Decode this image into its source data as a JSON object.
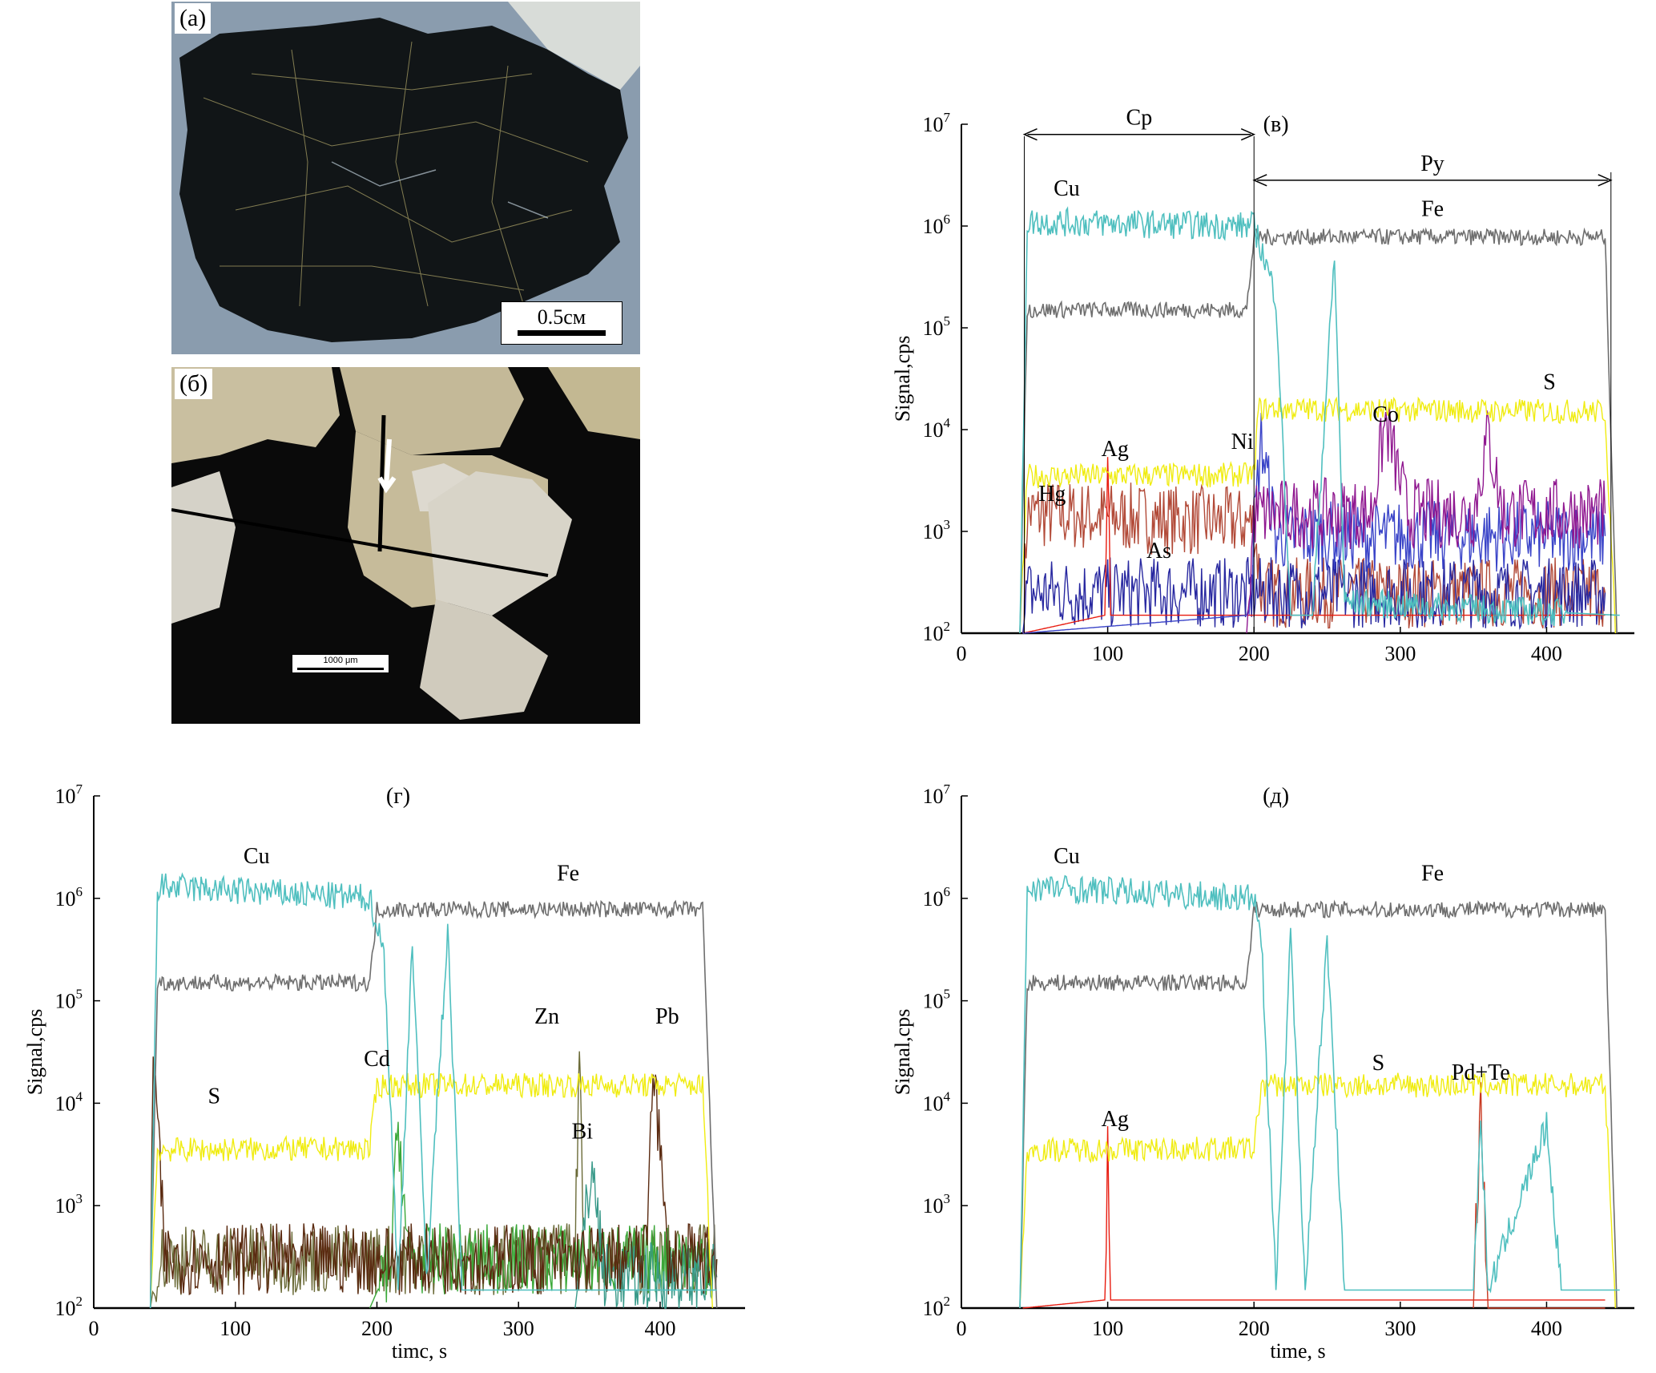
{
  "photos": {
    "a": {
      "label": "(а)",
      "scale": "0.5см"
    },
    "b": {
      "label": "(б)",
      "scale": "1000 μm"
    }
  },
  "colors": {
    "Cu": "#4fbfbf",
    "Fe": "#6e6e6e",
    "S": "#f0ec10",
    "Ag": "#e81c10",
    "Hg": "#b24a38",
    "As": "#2828a0",
    "Ni": "#3a44c8",
    "Co": "#901890",
    "Zn": "#6b6b38",
    "Cd": "#3aa838",
    "Bi": "#3a9a8a",
    "Pb": "#5a2a10",
    "Pd": "#c83820",
    "Te": "#6a60c0",
    "orange": "#f06a20"
  },
  "chart_data": [
    {
      "id": "v",
      "type": "line",
      "title": "(в)",
      "xlabel": "",
      "ylabel": "Signal,cps",
      "xlim": [
        0,
        460
      ],
      "ylim": [
        100,
        10000000
      ],
      "yscale": "log",
      "xticks": [
        "0",
        "100",
        "200",
        "300",
        "400"
      ],
      "ytick_base": "10",
      "ytick_exps": [
        "2",
        "3",
        "4",
        "5",
        "6",
        "7"
      ],
      "ranges": [
        {
          "label": "Cp",
          "x": [
            43,
            200
          ]
        },
        {
          "label": "Py",
          "x": [
            200,
            444
          ]
        }
      ],
      "series": [
        {
          "name": "Fe",
          "segments": [
            [
              40,
              0,
              100
            ],
            [
              45,
              1,
              150000
            ],
            [
              195,
              1,
              150000
            ],
            [
              200,
              1,
              780000
            ],
            [
              440,
              1,
              780000
            ],
            [
              448,
              0,
              100
            ]
          ]
        },
        {
          "name": "Cu",
          "segments": [
            [
              40,
              0,
              100
            ],
            [
              45,
              1,
              1100000
            ],
            [
              200,
              1,
              1000000
            ],
            [
              205,
              1,
              600000
            ],
            [
              215,
              1,
              200000
            ],
            [
              225,
              1,
              150
            ],
            [
              240,
              1,
              150
            ],
            [
              255,
              1,
              500000
            ],
            [
              262,
              1,
              200
            ],
            [
              450,
              1,
              150
            ]
          ]
        },
        {
          "name": "S",
          "segments": [
            [
              40,
              0,
              100
            ],
            [
              45,
              1,
              3500
            ],
            [
              200,
              1,
              3600
            ],
            [
              203,
              1,
              16000
            ],
            [
              440,
              1,
              15000
            ],
            [
              447,
              0,
              100
            ]
          ]
        },
        {
          "name": "Ag",
          "segments": [
            [
              42,
              0,
              100
            ],
            [
              98,
              1,
              150
            ],
            [
              100,
              1,
              4500
            ],
            [
              102,
              1,
              150
            ],
            [
              440,
              1,
              150
            ]
          ]
        },
        {
          "name": "Hg",
          "segments": [
            [
              42,
              0,
              100
            ],
            [
              45,
              1,
              1500
            ],
            [
              200,
              1,
              1200
            ],
            [
              205,
              1,
              250
            ],
            [
              440,
              1,
              250
            ]
          ]
        },
        {
          "name": "As",
          "segments": [
            [
              42,
              0,
              100
            ],
            [
              45,
              1,
              250
            ],
            [
              440,
              1,
              250
            ]
          ]
        },
        {
          "name": "Ni",
          "segments": [
            [
              42,
              0,
              100
            ],
            [
              195,
              1,
              150
            ],
            [
              205,
              1,
              8000
            ],
            [
              215,
              1,
              900
            ],
            [
              440,
              1,
              900
            ]
          ]
        },
        {
          "name": "Co",
          "segments": [
            [
              195,
              0,
              100
            ],
            [
              200,
              1,
              1500
            ],
            [
              280,
              1,
              1500
            ],
            [
              290,
              1,
              12000
            ],
            [
              305,
              1,
              1500
            ],
            [
              350,
              1,
              1500
            ],
            [
              360,
              1,
              9000
            ],
            [
              370,
              1,
              1500
            ],
            [
              440,
              1,
              1500
            ]
          ]
        }
      ],
      "annotations": [
        {
          "label": "Cu",
          "x": 72,
          "y": 2000000
        },
        {
          "label": "Fe",
          "x": 322,
          "y": 1250000
        },
        {
          "label": "Ag",
          "x": 105,
          "y": 5500
        },
        {
          "label": "Hg",
          "x": 62,
          "y": 2000
        },
        {
          "label": "As",
          "x": 135,
          "y": 550
        },
        {
          "label": "Ni",
          "x": 192,
          "y": 6500
        },
        {
          "label": "Co",
          "x": 290,
          "y": 12000
        },
        {
          "label": "S",
          "x": 402,
          "y": 25000
        }
      ]
    },
    {
      "id": "g",
      "type": "line",
      "title": "(г)",
      "xlabel": "timc, s",
      "ylabel": "Signal,cps",
      "xlim": [
        0,
        460
      ],
      "ylim": [
        100,
        10000000
      ],
      "yscale": "log",
      "xticks": [
        "0",
        "100",
        "200",
        "300",
        "400"
      ],
      "ytick_base": "10",
      "ytick_exps": [
        "2",
        "3",
        "4",
        "5",
        "6",
        "7"
      ],
      "series": [
        {
          "name": "Fe",
          "segments": [
            [
              40,
              0,
              100
            ],
            [
              45,
              1,
              150000
            ],
            [
              195,
              1,
              150000
            ],
            [
              200,
              1,
              780000
            ],
            [
              430,
              1,
              780000
            ],
            [
              440,
              0,
              100
            ]
          ]
        },
        {
          "name": "Cu",
          "segments": [
            [
              40,
              0,
              100
            ],
            [
              45,
              1,
              1300000
            ],
            [
              195,
              1,
              1000000
            ],
            [
              205,
              1,
              300000
            ],
            [
              215,
              1,
              150
            ],
            [
              225,
              1,
              400000
            ],
            [
              235,
              1,
              200
            ],
            [
              250,
              1,
              500000
            ],
            [
              260,
              1,
              150
            ],
            [
              440,
              1,
              150
            ]
          ]
        },
        {
          "name": "S",
          "segments": [
            [
              40,
              0,
              100
            ],
            [
              45,
              1,
              3500
            ],
            [
              195,
              1,
              3600
            ],
            [
              200,
              1,
              15000
            ],
            [
              430,
              1,
              15000
            ],
            [
              437,
              0,
              100
            ]
          ]
        },
        {
          "name": "Zn",
          "segments": [
            [
              40,
              0,
              100
            ],
            [
              45,
              1,
              300
            ],
            [
              340,
              1,
              300
            ],
            [
              343,
              1,
              45000
            ],
            [
              346,
              1,
              300
            ],
            [
              440,
              1,
              300
            ]
          ]
        },
        {
          "name": "Cd",
          "segments": [
            [
              195,
              0,
              100
            ],
            [
              210,
              1,
              300
            ],
            [
              215,
              1,
              7000
            ],
            [
              222,
              1,
              300
            ],
            [
              440,
              1,
              300
            ]
          ]
        },
        {
          "name": "Bi",
          "segments": [
            [
              340,
              0,
              100
            ],
            [
              352,
              1,
              2500
            ],
            [
              360,
              1,
              200
            ],
            [
              440,
              1,
              200
            ]
          ]
        },
        {
          "name": "Pb",
          "segments": [
            [
              40,
              0,
              100
            ],
            [
              42,
              1,
              40000
            ],
            [
              50,
              1,
              300
            ],
            [
              390,
              1,
              300
            ],
            [
              395,
              1,
              35000
            ],
            [
              405,
              1,
              300
            ],
            [
              440,
              1,
              300
            ]
          ]
        }
      ],
      "annotations": [
        {
          "label": "Cu",
          "x": 115,
          "y": 2200000
        },
        {
          "label": "Fe",
          "x": 335,
          "y": 1500000
        },
        {
          "label": "S",
          "x": 85,
          "y": 10000
        },
        {
          "label": "Cd",
          "x": 200,
          "y": 23000
        },
        {
          "label": "Zn",
          "x": 320,
          "y": 60000
        },
        {
          "label": "Bi",
          "x": 345,
          "y": 4500
        },
        {
          "label": "Pb",
          "x": 405,
          "y": 60000
        }
      ]
    },
    {
      "id": "d",
      "type": "line",
      "title": "(д)",
      "xlabel": "time, s",
      "ylabel": "Signal,cps",
      "xlim": [
        0,
        460
      ],
      "ylim": [
        100,
        10000000
      ],
      "yscale": "log",
      "xticks": [
        "0",
        "100",
        "200",
        "300",
        "400"
      ],
      "ytick_base": "10",
      "ytick_exps": [
        "2",
        "3",
        "4",
        "5",
        "6",
        "7"
      ],
      "series": [
        {
          "name": "Fe",
          "segments": [
            [
              40,
              0,
              100
            ],
            [
              45,
              1,
              150000
            ],
            [
              195,
              1,
              150000
            ],
            [
              200,
              1,
              780000
            ],
            [
              440,
              1,
              780000
            ],
            [
              448,
              0,
              100
            ]
          ]
        },
        {
          "name": "Cu",
          "segments": [
            [
              40,
              0,
              100
            ],
            [
              45,
              1,
              1300000
            ],
            [
              200,
              1,
              1000000
            ],
            [
              205,
              1,
              400000
            ],
            [
              215,
              1,
              150
            ],
            [
              225,
              1,
              500000
            ],
            [
              235,
              1,
              150
            ],
            [
              250,
              1,
              400000
            ],
            [
              262,
              1,
              150
            ],
            [
              350,
              1,
              150
            ],
            [
              355,
              1,
              7000
            ],
            [
              360,
              1,
              150
            ],
            [
              400,
              1,
              6000
            ],
            [
              410,
              1,
              150
            ],
            [
              450,
              1,
              150
            ]
          ]
        },
        {
          "name": "S",
          "segments": [
            [
              40,
              0,
              100
            ],
            [
              45,
              1,
              3500
            ],
            [
              200,
              1,
              3600
            ],
            [
              205,
              1,
              15000
            ],
            [
              440,
              1,
              15000
            ],
            [
              447,
              0,
              100
            ]
          ]
        },
        {
          "name": "Ag",
          "segments": [
            [
              42,
              0,
              100
            ],
            [
              98,
              1,
              120
            ],
            [
              100,
              1,
              4000
            ],
            [
              102,
              1,
              120
            ],
            [
              440,
              1,
              120
            ]
          ]
        },
        {
          "name": "Pd+Te",
          "segments": [
            [
              350,
              0,
              100
            ],
            [
              355,
              1,
              13000
            ],
            [
              360,
              1,
              100
            ],
            [
              440,
              1,
              100
            ]
          ]
        }
      ],
      "annotations": [
        {
          "label": "Cu",
          "x": 72,
          "y": 2200000
        },
        {
          "label": "Fe",
          "x": 322,
          "y": 1500000
        },
        {
          "label": "S",
          "x": 285,
          "y": 21000
        },
        {
          "label": "Ag",
          "x": 105,
          "y": 6000
        },
        {
          "label": "Pd+Te",
          "x": 355,
          "y": 17000
        }
      ]
    }
  ]
}
